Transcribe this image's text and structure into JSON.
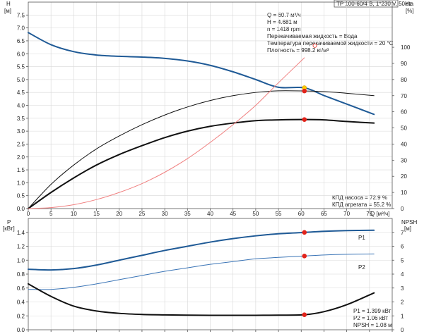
{
  "colors": {
    "blue": "#1f5a96",
    "blue_light": "#3a74b6",
    "black": "#111111",
    "red_curve": "#f08080",
    "marker_red": "#e2231a",
    "marker_yellow": "#ffcc00",
    "grid": "#d8d8d8",
    "axis": "#555555"
  },
  "chart_data": [
    {
      "type": "line",
      "id": "upper",
      "title_box": "TP 100-60/4 B, 1*230 V, 50Hz",
      "y_label_top": "H",
      "y_unit": "[м]",
      "x_label": "Q [м³/ч]",
      "y2_label_top": "eta",
      "y2_unit": "[%]",
      "xlim": [
        0,
        80
      ],
      "ylim": [
        0,
        8
      ],
      "y2lim": [
        0,
        128
      ],
      "x_ticks": [
        0,
        5,
        10,
        15,
        20,
        25,
        30,
        35,
        40,
        45,
        50,
        55,
        60,
        65,
        70,
        75
      ],
      "y_ticks": [
        "0.0",
        "0.5",
        "1.0",
        "1.5",
        "2.0",
        "2.5",
        "3.0",
        "3.5",
        "4.0",
        "4.5",
        "5.0",
        "5.5",
        "6.0",
        "6.5",
        "7.0",
        "7.5"
      ],
      "y2_ticks": [
        0,
        10,
        20,
        30,
        40,
        50,
        60,
        70,
        80,
        90,
        100
      ],
      "grid": true,
      "info_lines": [
        "Q = 60.7 м³/ч",
        "H = 4.681 м",
        "n = 1418 rpm",
        "Перекачиваемая жидкость = Вода",
        "Температура перекачиваемой жидкости = 20 °C",
        "Плотность = 998.2 кг/м³"
      ],
      "efficiency_lines": [
        "КПД насоса = 72.9 %",
        "КПД агрегата = 55.2 %"
      ],
      "series": [
        {
          "axis": "y",
          "color_key": "blue",
          "width": 2,
          "x": [
            0,
            5,
            10,
            15,
            20,
            25,
            30,
            35,
            40,
            45,
            50,
            55,
            60.7,
            65,
            70,
            76
          ],
          "y": [
            6.82,
            6.35,
            6.08,
            5.95,
            5.9,
            5.87,
            5.82,
            5.72,
            5.55,
            5.3,
            5.0,
            4.7,
            4.681,
            4.38,
            4.05,
            3.65
          ]
        },
        {
          "axis": "y2",
          "color_key": "black",
          "width": 1,
          "x": [
            0,
            5,
            10,
            15,
            20,
            25,
            30,
            35,
            40,
            45,
            50,
            55,
            60.7,
            65,
            70,
            76
          ],
          "y": [
            0,
            15,
            27,
            37,
            45,
            52,
            58,
            63,
            67,
            70,
            72,
            73,
            72.9,
            72.5,
            71.5,
            70
          ]
        },
        {
          "axis": "y2",
          "color_key": "black",
          "width": 2,
          "x": [
            0,
            5,
            10,
            15,
            20,
            25,
            30,
            35,
            40,
            45,
            50,
            55,
            60.7,
            65,
            70,
            76
          ],
          "y": [
            0,
            10,
            19,
            27,
            33.5,
            39,
            44,
            48,
            51,
            53,
            54.5,
            55,
            55.2,
            55,
            54,
            53
          ]
        },
        {
          "axis": "y2",
          "color_key": "red_curve",
          "width": 1,
          "x": [
            0,
            5,
            10,
            15,
            20,
            25,
            30,
            35,
            40,
            45,
            50,
            55,
            60.7
          ],
          "y": [
            0,
            0.6,
            2.4,
            5.6,
            10,
            15.5,
            22.5,
            31,
            41,
            52,
            64,
            78,
            93.5
          ]
        }
      ],
      "markers": [
        {
          "axis": "y",
          "x": 60.7,
          "y": 4.681,
          "color_key": "marker_yellow"
        },
        {
          "axis": "y2",
          "x": 60.7,
          "y": 72.9,
          "color_key": "marker_red"
        },
        {
          "axis": "y2",
          "x": 60.7,
          "y": 55.2,
          "color_key": "marker_red"
        }
      ],
      "open_markers": [
        {
          "axis": "y2",
          "x": 63,
          "y": 101,
          "color_key": "marker_red"
        }
      ]
    },
    {
      "type": "line",
      "id": "lower",
      "y_label_top": "P",
      "y_unit": "[кВт]",
      "y2_label_top": "NPSH",
      "y2_unit": "[м]",
      "xlim": [
        0,
        80
      ],
      "ylim": [
        0,
        1.6
      ],
      "y2lim": [
        0,
        8
      ],
      "y_ticks": [
        "0.0",
        "0.2",
        "0.4",
        "0.6",
        "0.8",
        "1.0",
        "1.2",
        "1.4"
      ],
      "y2_ticks": [
        0,
        1,
        2,
        3,
        4,
        5,
        6,
        7
      ],
      "grid": true,
      "info_lines": [
        "P1 = 1.399 кВт",
        "P2 = 1.06 кВт",
        "NPSH = 1.08 м"
      ],
      "series": [
        {
          "axis": "y",
          "color_key": "blue",
          "width": 2,
          "name": "P1",
          "x": [
            0,
            5,
            10,
            15,
            20,
            25,
            30,
            35,
            40,
            45,
            50,
            55,
            60.7,
            65,
            70,
            76
          ],
          "y": [
            0.87,
            0.86,
            0.88,
            0.93,
            1.0,
            1.07,
            1.14,
            1.2,
            1.26,
            1.31,
            1.35,
            1.38,
            1.399,
            1.415,
            1.425,
            1.43
          ]
        },
        {
          "axis": "y",
          "color_key": "blue_light",
          "width": 1,
          "name": "P2",
          "x": [
            0,
            5,
            10,
            15,
            20,
            25,
            30,
            35,
            40,
            45,
            50,
            55,
            60.7,
            65,
            70,
            76
          ],
          "y": [
            0.58,
            0.58,
            0.61,
            0.66,
            0.72,
            0.78,
            0.84,
            0.89,
            0.94,
            0.98,
            1.02,
            1.04,
            1.06,
            1.075,
            1.085,
            1.09
          ]
        },
        {
          "axis": "y2",
          "color_key": "black",
          "width": 2,
          "x": [
            0,
            5,
            10,
            15,
            20,
            25,
            30,
            35,
            40,
            45,
            50,
            55,
            60.7,
            65,
            70,
            76
          ],
          "y": [
            3.3,
            2.4,
            1.7,
            1.35,
            1.18,
            1.1,
            1.07,
            1.05,
            1.04,
            1.04,
            1.04,
            1.05,
            1.08,
            1.3,
            1.8,
            2.65
          ]
        }
      ],
      "markers": [
        {
          "axis": "y",
          "x": 60.7,
          "y": 1.399,
          "color_key": "marker_red"
        },
        {
          "axis": "y",
          "x": 60.7,
          "y": 1.06,
          "color_key": "marker_red"
        },
        {
          "axis": "y2",
          "x": 60.7,
          "y": 1.08,
          "color_key": "marker_red"
        }
      ]
    }
  ]
}
